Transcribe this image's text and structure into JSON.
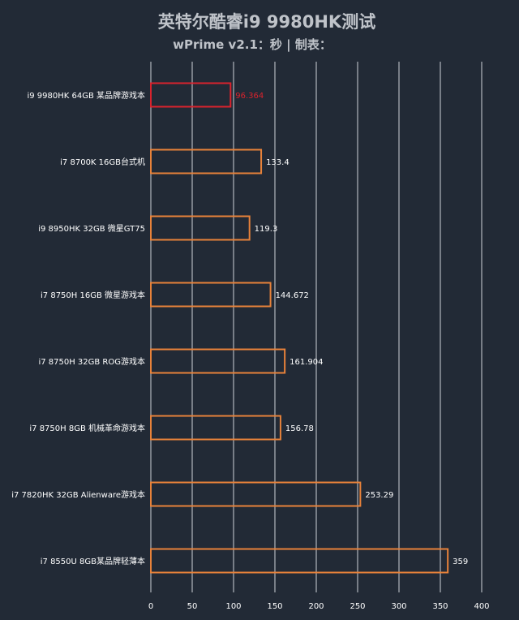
{
  "chart_data": {
    "type": "bar",
    "orientation": "horizontal",
    "title": "英特尔酷睿i9 9980HK测试",
    "subtitle": "wPrime v2.1：秒 | 制表：",
    "categories": [
      "i9 9980HK 64GB 某品牌游戏本",
      "i7 8700K 16GB台式机",
      "i9 8950HK 32GB 微星GT75",
      "i7 8750H 16GB 微星游戏本",
      "i7 8750H 32GB ROG游戏本",
      "i7 8750H 8GB 机械革命游戏本",
      "i7 7820HK 32GB Alienware游戏本",
      "i7 8550U 8GB某品牌轻薄本"
    ],
    "values": [
      96.364,
      133.4,
      119.3,
      144.672,
      161.904,
      156.78,
      253.29,
      359
    ],
    "value_labels": [
      "96.364",
      "133.4",
      "119.3",
      "144.672",
      "161.904",
      "156.78",
      "253.29",
      "359"
    ],
    "highlight_index": 0,
    "xlim": [
      0,
      400
    ],
    "xticks": [
      "0",
      "50",
      "100",
      "150",
      "200",
      "250",
      "300",
      "350",
      "400"
    ],
    "grid": true,
    "colors": {
      "background": "#222a36",
      "bar_outline": "#e8823a",
      "highlight_outline": "#d9232d",
      "highlight_label": "#d9232d",
      "gridline": "#cfd3d8",
      "title": "#bfc3c9",
      "text": "#ffffff"
    }
  }
}
